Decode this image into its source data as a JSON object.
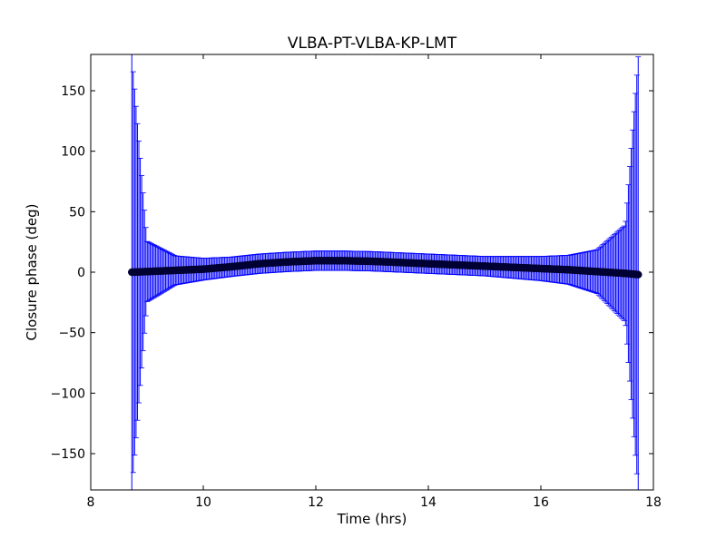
{
  "chart_data": {
    "type": "scatter",
    "title": "VLBA-PT-VLBA-KP-LMT",
    "xlabel": "Time (hrs)",
    "ylabel": "Closure phase (deg)",
    "xlim": [
      8,
      18
    ],
    "ylim": [
      -180,
      180
    ],
    "xticks": [
      8,
      10,
      12,
      14,
      16,
      18
    ],
    "yticks": [
      -150,
      -100,
      -50,
      0,
      50,
      100,
      150
    ],
    "grid": false,
    "legend": "none",
    "marker_color": "#000033",
    "errorbar_color": "#0000ff",
    "series": [
      {
        "x": [
          8.73,
          9.0,
          9.5,
          10.0,
          10.5,
          11.0,
          11.5,
          12.0,
          12.5,
          13.0,
          13.5,
          14.0,
          14.5,
          15.0,
          15.5,
          16.0,
          16.5,
          17.0,
          17.5,
          17.73
        ],
        "y": [
          0,
          0.5,
          1.5,
          2.5,
          4.5,
          7.0,
          8.5,
          9.5,
          9.5,
          9.0,
          8.0,
          7.0,
          6.0,
          5.0,
          4.0,
          3.0,
          2.0,
          0.5,
          -1.0,
          -2.0
        ],
        "yerr": [
          180,
          25,
          12,
          9,
          8,
          8,
          8,
          8,
          8,
          8,
          8,
          8,
          8,
          8,
          9,
          10,
          12,
          18,
          40,
          180
        ]
      }
    ]
  }
}
